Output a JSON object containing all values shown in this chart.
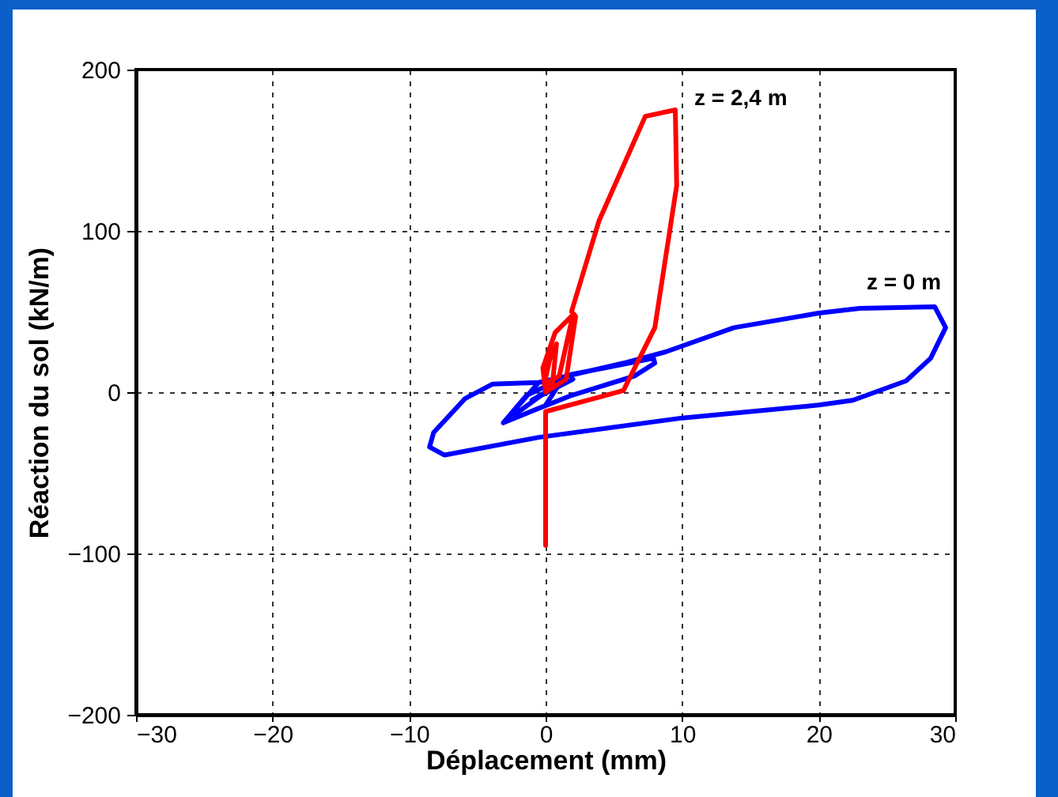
{
  "chart_data": {
    "type": "line",
    "xlabel": "Déplacement (mm)",
    "ylabel": "Réaction du sol (kN/m)",
    "xlim": [
      -30,
      30
    ],
    "ylim": [
      -200,
      200
    ],
    "xticks": [
      -30,
      -20,
      -10,
      0,
      10,
      20,
      30
    ],
    "yticks": [
      -200,
      -100,
      0,
      100,
      200
    ],
    "grid": true,
    "legend": false,
    "marker": "none",
    "line_style": "solid",
    "series": [
      {
        "name": "z = 0 m",
        "color": "#0000ff",
        "x": [
          0,
          1,
          -1,
          2,
          0,
          -3.1,
          -1.4,
          1.9,
          7.9,
          8,
          6.5,
          1.9,
          -0.5,
          -3.1,
          -0.5,
          -3.9,
          -5.9,
          -8.2,
          -8.5,
          -7.4,
          -0.5,
          10,
          20,
          22.5,
          26.4,
          28.2,
          29.3,
          28.5,
          23,
          20,
          13.8,
          8.8,
          5.7,
          -0.5
        ],
        "values": [
          -8,
          5,
          -5,
          8,
          0,
          -19,
          -2,
          11,
          21,
          18,
          10,
          -2,
          -10,
          -19,
          6,
          5,
          -4,
          -25,
          -34,
          -39,
          -28,
          -16,
          -8,
          -5,
          7,
          21,
          40,
          53,
          52,
          49,
          40,
          25,
          18,
          6
        ]
      },
      {
        "name": "z = 2,4 m",
        "color": "#ff0000",
        "x": [
          0,
          0,
          5.7,
          8,
          9.6,
          9.5,
          7.3,
          3.9,
          1.9,
          2.2,
          1.5,
          0,
          -0.2,
          0.7,
          2,
          1,
          -0.1,
          0.3,
          0.8,
          0.5,
          0
        ],
        "values": [
          -95,
          -12,
          1,
          40,
          128,
          175,
          171,
          106,
          50,
          47,
          8,
          0,
          15,
          37,
          48,
          10,
          5,
          20,
          30,
          5,
          2
        ]
      }
    ]
  }
}
